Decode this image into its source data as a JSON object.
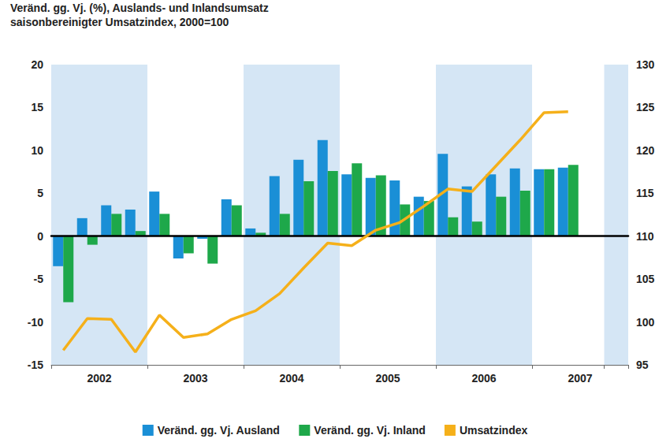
{
  "chart_data": {
    "type": "bar",
    "title": "Veränd. gg. Vj. (%), Auslands- und Inlandsumsatz",
    "subtitle": "saisonbereinigter Umsatzindex, 2000=100",
    "categories": [
      null,
      "2002",
      null,
      null,
      null,
      "2003",
      null,
      null,
      null,
      "2004",
      null,
      null,
      null,
      "2005",
      null,
      null,
      null,
      "2006",
      null,
      null,
      null,
      "2007",
      null,
      null
    ],
    "series": [
      {
        "name": "Veränd. gg. Vj. Ausland",
        "color": "#1a8fd6",
        "values": [
          -3.5,
          2.1,
          3.6,
          3.1,
          5.2,
          -2.6,
          -0.3,
          4.3,
          0.9,
          7.0,
          8.9,
          11.2,
          7.2,
          6.8,
          6.5,
          4.6,
          9.6,
          5.8,
          7.2,
          7.9,
          7.8,
          8.0,
          null,
          null
        ]
      },
      {
        "name": "Veränd. gg. Vj. Inland",
        "color": "#1ea84a",
        "values": [
          -7.7,
          -1.0,
          2.6,
          0.6,
          2.6,
          -2.0,
          -3.2,
          3.6,
          0.4,
          2.6,
          6.4,
          7.6,
          8.5,
          7.1,
          3.7,
          4.1,
          2.2,
          1.7,
          4.6,
          5.3,
          7.8,
          8.3,
          null,
          null
        ]
      },
      {
        "name": "Umsatzindex",
        "color": "#f5b01a",
        "type": "line",
        "axis": "y2",
        "values": [
          96.7,
          100.4,
          100.3,
          96.5,
          100.8,
          98.2,
          98.6,
          100.3,
          101.3,
          103.3,
          106.3,
          109.2,
          108.9,
          110.7,
          111.6,
          113.5,
          115.5,
          115.2,
          118.2,
          121.2,
          124.4,
          124.5,
          null,
          null
        ]
      }
    ],
    "ylim": [
      -15,
      20
    ],
    "yticks": [
      -15,
      -10,
      -5,
      0,
      5,
      10,
      15,
      20
    ],
    "y2lim": [
      95,
      130
    ],
    "y2ticks": [
      95,
      100,
      105,
      110,
      115,
      120,
      125,
      130
    ],
    "grid": false,
    "legend": "bottom"
  }
}
